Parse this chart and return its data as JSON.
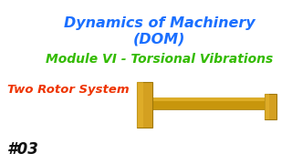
{
  "bg_color": "#ffffff",
  "title_line1": "Dynamics of Machinery",
  "title_line2": "(DOM)",
  "title_color": "#1a6fff",
  "subtitle": "Module VI - Torsional Vibrations",
  "subtitle_color": "#33bb00",
  "label": "Two Rotor System",
  "label_color": "#ee3300",
  "number": "#03",
  "number_color": "#111111",
  "rotor_color_face": "#d4a020",
  "rotor_color_edge": "#a07808",
  "shaft_color": "#c8960c",
  "shaft_color_dark": "#a07808",
  "title_fontsize": 11.5,
  "subtitle_fontsize": 10.0,
  "label_fontsize": 9.5,
  "number_fontsize": 12
}
